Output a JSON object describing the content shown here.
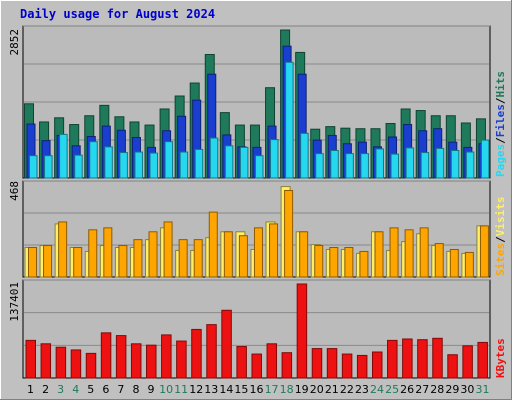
{
  "title": "Daily usage for August 2024",
  "colors": {
    "hits": "#1E7A5A",
    "files": "#1A3FD0",
    "pages": "#25D8F0",
    "visits": "#FFA500",
    "sites": "#FFEE66",
    "kbytes": "#EE1111",
    "weekend_label": "#1E7A5A",
    "weekday_label": "#000000",
    "grid": "#8A8A8A",
    "panel_bg": "#BBBBBB"
  },
  "legends": {
    "top": {
      "hits": "Hits",
      "files": "Files",
      "pages": "Pages",
      "sep": "/"
    },
    "middle": {
      "visits": "Visits",
      "sites": "Sites",
      "sep": "/"
    },
    "bottom": {
      "kbytes": "KBytes"
    }
  },
  "chart_data": [
    {
      "type": "bar",
      "name": "hits-files-pages",
      "categories": [
        "1",
        "2",
        "3",
        "4",
        "5",
        "6",
        "7",
        "8",
        "9",
        "10",
        "11",
        "12",
        "13",
        "14",
        "15",
        "16",
        "17",
        "18",
        "19",
        "20",
        "21",
        "22",
        "23",
        "24",
        "25",
        "26",
        "27",
        "28",
        "29",
        "30",
        "31"
      ],
      "weekend_days": [
        "3",
        "4",
        "10",
        "11",
        "17",
        "18",
        "24",
        "25",
        "31"
      ],
      "ymax_label": "2852",
      "ylim": [
        0,
        2852
      ],
      "series": [
        {
          "name": "Hits",
          "key": "hits",
          "values": [
            1430,
            1080,
            1160,
            1030,
            1200,
            1400,
            1180,
            1080,
            1020,
            1330,
            1580,
            1830,
            2380,
            1260,
            1020,
            1020,
            1740,
            2852,
            2420,
            940,
            990,
            960,
            950,
            950,
            1050,
            1330,
            1300,
            1200,
            1200,
            1060,
            1140
          ]
        },
        {
          "name": "Files",
          "key": "files",
          "values": [
            1040,
            720,
            820,
            620,
            800,
            1000,
            920,
            780,
            590,
            910,
            1190,
            1500,
            2000,
            830,
            600,
            590,
            1000,
            2540,
            2000,
            730,
            820,
            660,
            690,
            600,
            790,
            1030,
            910,
            950,
            690,
            590,
            660
          ]
        },
        {
          "name": "Pages",
          "key": "pages",
          "values": [
            430,
            430,
            840,
            440,
            700,
            600,
            490,
            500,
            480,
            700,
            500,
            550,
            770,
            620,
            590,
            430,
            740,
            2230,
            860,
            470,
            530,
            470,
            470,
            560,
            460,
            580,
            490,
            570,
            530,
            500,
            730
          ]
        }
      ]
    },
    {
      "type": "bar",
      "name": "visits-sites",
      "categories": [
        "1",
        "2",
        "3",
        "4",
        "5",
        "6",
        "7",
        "8",
        "9",
        "10",
        "11",
        "12",
        "13",
        "14",
        "15",
        "16",
        "17",
        "18",
        "19",
        "20",
        "21",
        "22",
        "23",
        "24",
        "25",
        "26",
        "27",
        "28",
        "29",
        "30",
        "31"
      ],
      "ymax_label": "468",
      "ylim": [
        0,
        468
      ],
      "series": [
        {
          "name": "Sites",
          "key": "sites",
          "values": [
            150,
            160,
            270,
            150,
            130,
            160,
            150,
            150,
            190,
            250,
            135,
            135,
            200,
            230,
            230,
            140,
            280,
            460,
            230,
            165,
            140,
            140,
            120,
            230,
            135,
            180,
            220,
            160,
            130,
            120,
            260
          ]
        },
        {
          "name": "Visits",
          "key": "visits",
          "values": [
            150,
            160,
            280,
            150,
            240,
            250,
            160,
            190,
            230,
            280,
            190,
            190,
            330,
            230,
            210,
            250,
            270,
            440,
            230,
            160,
            150,
            150,
            130,
            230,
            250,
            240,
            250,
            170,
            140,
            125,
            260
          ]
        }
      ]
    },
    {
      "type": "bar",
      "name": "kbytes",
      "categories": [
        "1",
        "2",
        "3",
        "4",
        "5",
        "6",
        "7",
        "8",
        "9",
        "10",
        "11",
        "12",
        "13",
        "14",
        "15",
        "16",
        "17",
        "18",
        "19",
        "20",
        "21",
        "22",
        "23",
        "24",
        "25",
        "26",
        "27",
        "28",
        "29",
        "30",
        "31"
      ],
      "ymax_label": "137401",
      "ylim": [
        0,
        137401
      ],
      "series": [
        {
          "name": "KBytes",
          "key": "kbytes",
          "values": [
            55000,
            50000,
            45000,
            41000,
            36000,
            66000,
            62000,
            50000,
            48000,
            63000,
            54000,
            71000,
            78000,
            99000,
            46000,
            35000,
            50000,
            37000,
            137401,
            43000,
            43000,
            35000,
            33000,
            38000,
            55000,
            57000,
            56000,
            58000,
            34000,
            47000,
            52000
          ]
        }
      ]
    }
  ]
}
